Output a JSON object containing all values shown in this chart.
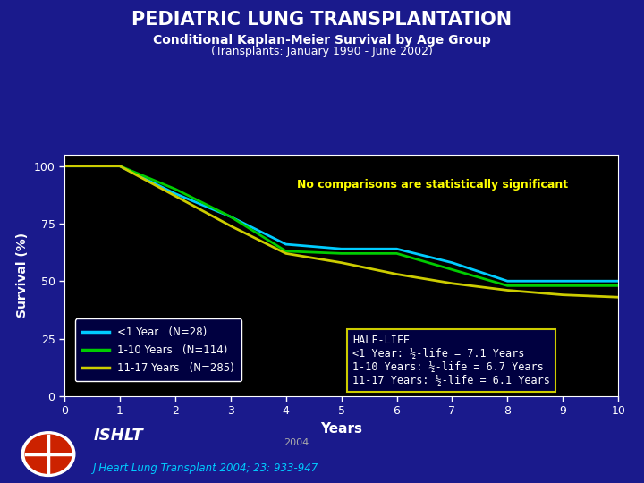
{
  "title": "PEDIATRIC LUNG TRANSPLANTATION",
  "subtitle": "Conditional Kaplan-Meier Survival by Age Group",
  "subtitle2": "(Transplants: January 1990 - June 2002)",
  "xlabel": "Years",
  "ylabel": "Survival (%)",
  "bg_color": "#1a1a8c",
  "plot_bg_color": "#000000",
  "annotation_text": "No comparisons are statistically significant",
  "annotation_color": "#FFFF00",
  "halflife_title": "HALF-LIFE",
  "halflife_lines": [
    "<1 Year: ½-life = 7.1 Years",
    "1-10 Years: ½-life = 6.7 Years",
    "11-17 Years: ½-life = 6.1 Years"
  ],
  "series": [
    {
      "label": "<1 Year",
      "n_label": "(N=28)",
      "color": "#00CCFF",
      "x": [
        0,
        1,
        2,
        3,
        4,
        5,
        6,
        7,
        8,
        9,
        10
      ],
      "y": [
        100,
        100,
        88,
        78,
        66,
        64,
        64,
        58,
        50,
        50,
        50
      ]
    },
    {
      "label": "1-10 Years",
      "n_label": "(N=114)",
      "color": "#00CC00",
      "x": [
        0,
        1,
        2,
        3,
        4,
        5,
        6,
        7,
        8,
        9,
        10
      ],
      "y": [
        100,
        100,
        90,
        78,
        63,
        62,
        62,
        55,
        48,
        48,
        48
      ]
    },
    {
      "label": "11-17 Years",
      "n_label": "(N=285)",
      "color": "#CCCC00",
      "x": [
        0,
        1,
        2,
        3,
        4,
        5,
        6,
        7,
        8,
        9,
        10
      ],
      "y": [
        100,
        100,
        87,
        74,
        62,
        58,
        53,
        49,
        46,
        44,
        43
      ]
    }
  ],
  "xlim": [
    0,
    10
  ],
  "ylim": [
    0,
    105
  ],
  "xticks": [
    0,
    1,
    2,
    3,
    4,
    5,
    6,
    7,
    8,
    9,
    10
  ],
  "yticks": [
    0,
    25,
    50,
    75,
    100
  ],
  "footer_ishlt": "ISHLT",
  "footer_year": "2004",
  "footer_citation": "J Heart Lung Transplant 2004; 23: 933-947"
}
